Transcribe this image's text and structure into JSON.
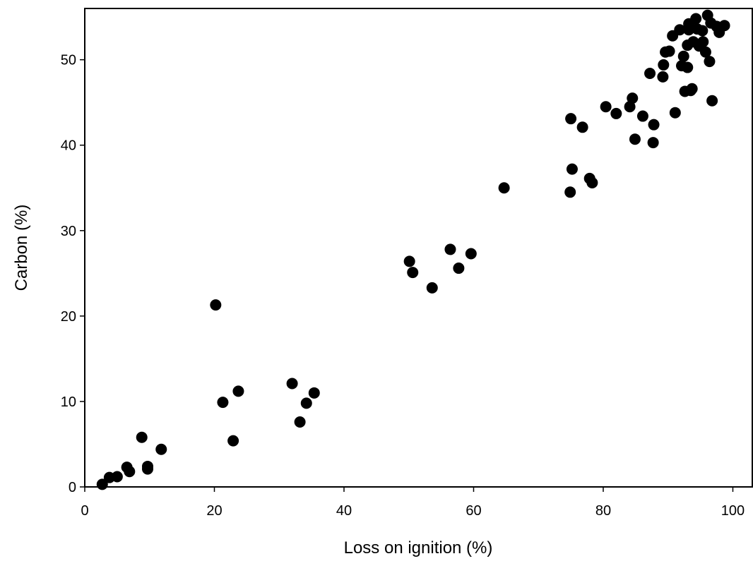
{
  "chart_data": {
    "type": "scatter",
    "x_label": "Loss on ignition (%)",
    "y_label": "Carbon (%)",
    "color": "#000000",
    "xlim": [
      0,
      103
    ],
    "ylim": [
      0,
      56
    ],
    "xticks": [
      0,
      20,
      40,
      60,
      80,
      100
    ],
    "yticks": [
      0,
      10,
      20,
      30,
      40,
      50
    ],
    "x": [
      2.7,
      3.8,
      5.0,
      6.5,
      6.9,
      8.8,
      9.7,
      9.7,
      11.8,
      20.2,
      21.3,
      22.9,
      23.7,
      32.0,
      33.2,
      34.2,
      35.4,
      50.1,
      50.6,
      53.6,
      56.4,
      57.7,
      59.6,
      64.7,
      74.9,
      75.0,
      75.2,
      76.8,
      77.9,
      78.3,
      80.4,
      82.0,
      84.1,
      84.5,
      84.9,
      86.1,
      87.2,
      87.8,
      87.7,
      89.2,
      89.3,
      89.6,
      90.2,
      90.7,
      91.1,
      91.8,
      92.1,
      92.4,
      92.6,
      93.0,
      93.0,
      93.2,
      93.2,
      93.5,
      93.7,
      93.9,
      94.3,
      94.5,
      94.8,
      95.3,
      95.4,
      95.8,
      96.1,
      96.4,
      96.6,
      96.8,
      97.5,
      97.9,
      98.7
    ],
    "values": [
      0.3,
      1.1,
      1.2,
      2.3,
      1.8,
      5.8,
      2.4,
      2.1,
      4.4,
      21.3,
      9.9,
      5.4,
      11.2,
      12.1,
      7.6,
      9.8,
      11.0,
      26.4,
      25.1,
      23.3,
      27.8,
      25.6,
      27.3,
      35.0,
      34.5,
      43.1,
      37.2,
      42.1,
      36.1,
      35.6,
      44.5,
      43.7,
      44.5,
      45.5,
      40.7,
      43.4,
      48.4,
      42.4,
      40.3,
      48.0,
      49.4,
      50.9,
      51.0,
      52.8,
      43.8,
      53.5,
      49.3,
      50.4,
      46.3,
      51.7,
      49.1,
      54.2,
      53.5,
      46.4,
      46.6,
      52.1,
      54.8,
      53.6,
      51.6,
      53.4,
      52.1,
      50.9,
      55.2,
      49.8,
      54.3,
      45.2,
      53.9,
      53.2,
      54.0
    ]
  }
}
